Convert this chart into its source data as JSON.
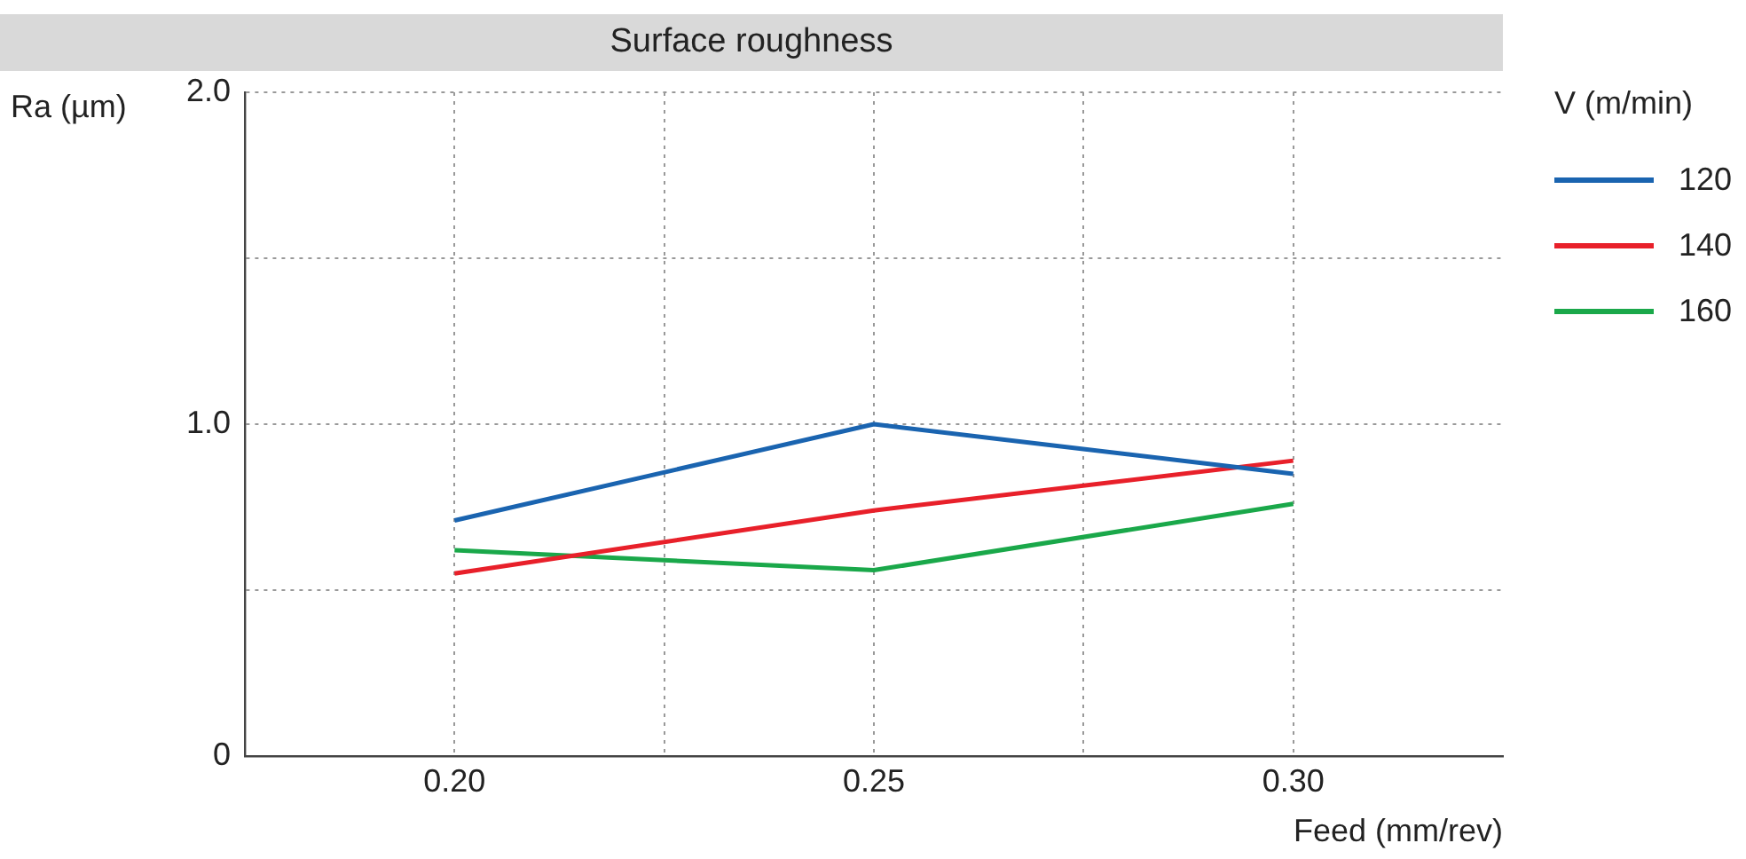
{
  "chart_data": {
    "type": "line",
    "title": "Surface roughness",
    "xlabel": "Feed (mm/rev)",
    "ylabel": "Ra (µm)",
    "legend_title": "V (m/min)",
    "x": [
      0.2,
      0.25,
      0.3
    ],
    "series": [
      {
        "name": "120",
        "color": "#1a64b0",
        "values": [
          0.71,
          1.0,
          0.85
        ]
      },
      {
        "name": "140",
        "color": "#e8202a",
        "values": [
          0.55,
          0.74,
          0.89
        ]
      },
      {
        "name": "160",
        "color": "#1aa84a",
        "values": [
          0.62,
          0.56,
          0.76
        ]
      }
    ],
    "xlim": [
      0.175,
      0.325
    ],
    "xticks": [
      {
        "value": 0.2,
        "label": "0.20"
      },
      {
        "value": 0.225,
        "label": null
      },
      {
        "value": 0.25,
        "label": "0.25"
      },
      {
        "value": 0.275,
        "label": null
      },
      {
        "value": 0.3,
        "label": "0.30"
      }
    ],
    "ylim": [
      0,
      2
    ],
    "yticks": [
      0,
      {
        "value": 0.5,
        "label": null
      },
      {
        "value": 1,
        "label": "1.0"
      },
      {
        "value": 1.5,
        "label": null
      },
      {
        "value": 2,
        "label": "2.0"
      }
    ],
    "grid": true,
    "legend": "right",
    "marker": "none",
    "line_style": "solid"
  }
}
